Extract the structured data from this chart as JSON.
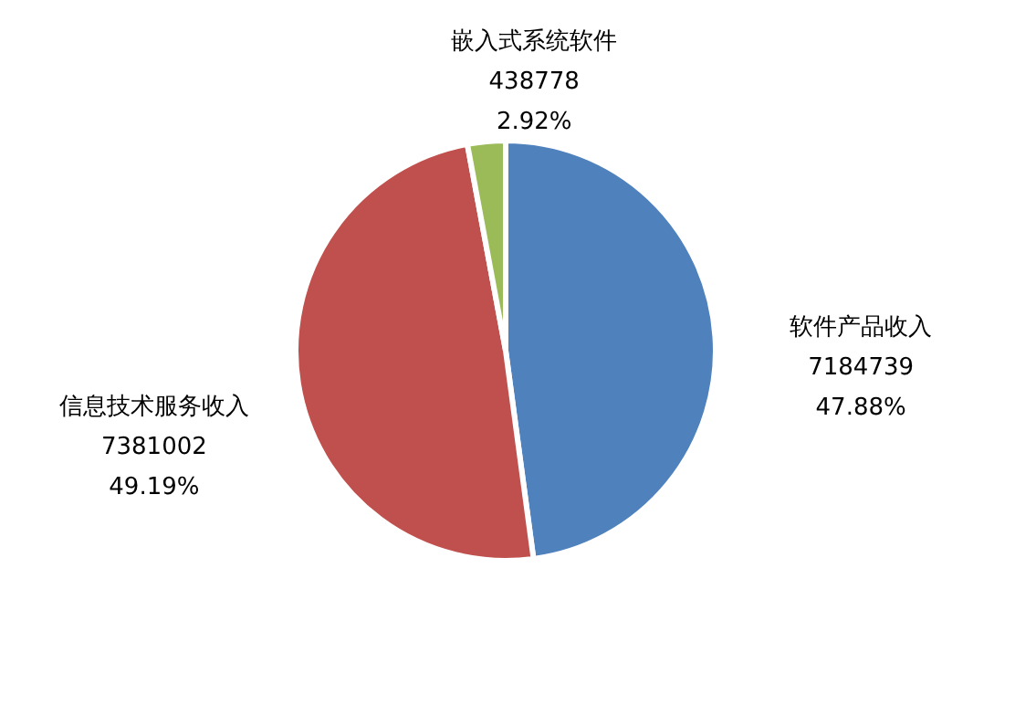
{
  "chart_data": {
    "type": "pie",
    "categories": [
      "软件产品收入",
      "信息技术服务收入",
      "嵌入式系统软件"
    ],
    "values": [
      7184739,
      7381002,
      438778
    ],
    "colors": [
      "#4f81bd",
      "#c0504d",
      "#9bbb59"
    ],
    "value_labels": [
      "7184739\n47.88%",
      "7381002\n49.19%",
      "438778\n2.92%"
    ],
    "legend": false
  }
}
